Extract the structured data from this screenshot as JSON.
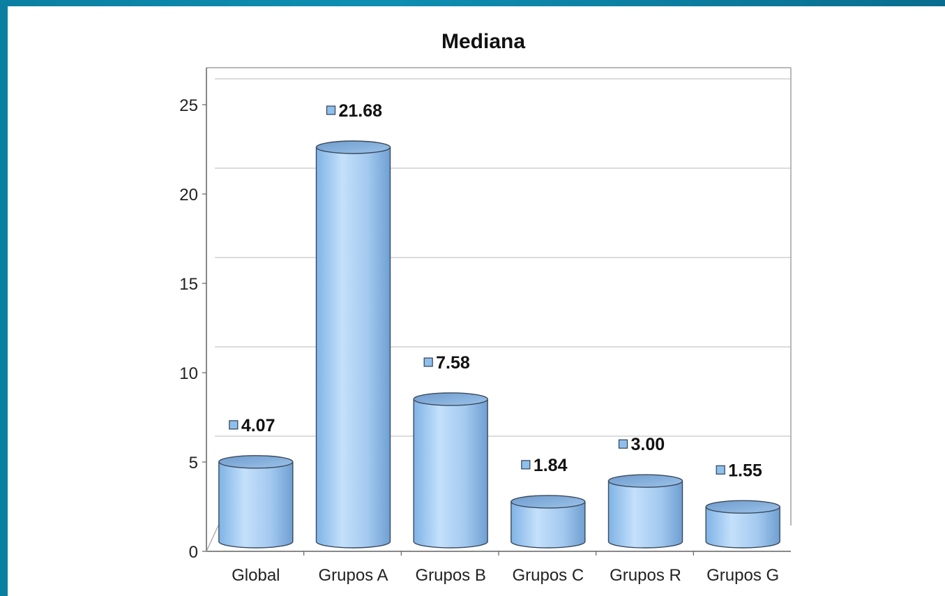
{
  "chart_data": {
    "type": "bar",
    "title": "Mediana",
    "categories": [
      "Global",
      "Grupos A",
      "Grupos B",
      "Grupos C",
      "Grupos R",
      "Grupos G"
    ],
    "values": [
      4.07,
      21.68,
      7.58,
      1.84,
      3.0,
      1.55
    ],
    "data_labels": [
      "4.07",
      "21.68",
      "7.58",
      "1.84",
      "3.00",
      "1.55"
    ],
    "y_ticks": [
      "0",
      "5",
      "10",
      "15",
      "20",
      "25"
    ],
    "ylim": [
      0,
      25
    ],
    "xlabel": "",
    "ylabel": "",
    "grid": true,
    "style": "3d-cylinder",
    "colors": {
      "bar_fill": "#a9cdf2",
      "bar_edge": "#3a4a5c",
      "bar_top": "#7fa8d6",
      "label_marker": "#8ec0ee",
      "grid": "#c8c8c8",
      "frame": "#a0a0a0",
      "background_accent": "#0b7fa1"
    }
  }
}
